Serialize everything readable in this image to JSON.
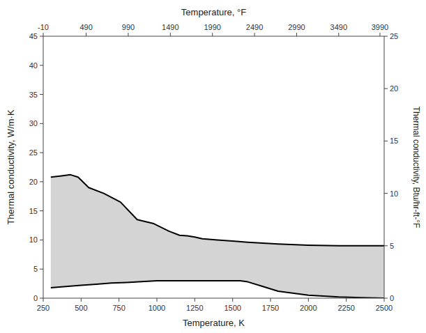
{
  "chart_data": {
    "type": "area",
    "color": "#b0b0b0",
    "grid": false,
    "xlabel": "Temperature, K",
    "ylabel": "Thermal conductivity, W/m·K",
    "y2label": "Thermal conductivity, Btu/hr-ft-°F",
    "x2label": "Temperature, °F",
    "xlim": [
      250,
      2500
    ],
    "xticks": [
      250,
      500,
      750,
      1000,
      1250,
      1500,
      1750,
      2000,
      2250,
      2500
    ],
    "x2lim": [
      250,
      2500
    ],
    "x2ticks": [
      {
        "value": 250.0,
        "label": "-10"
      },
      {
        "value": 533.3,
        "label": "490"
      },
      {
        "value": 811.1,
        "label": "990"
      },
      {
        "value": 1088.9,
        "label": "1490"
      },
      {
        "value": 1366.7,
        "label": "1990"
      },
      {
        "value": 1644.4,
        "label": "2490"
      },
      {
        "value": 1922.2,
        "label": "2990"
      },
      {
        "value": 2200.0,
        "label": "3490"
      },
      {
        "value": 2472.2,
        "label": "3990"
      }
    ],
    "ylim": [
      0,
      45
    ],
    "yticks": [
      0,
      5,
      10,
      15,
      20,
      25,
      30,
      35,
      40,
      45
    ],
    "y2lim": [
      0,
      25
    ],
    "y2ticks": [
      0,
      5,
      10,
      15,
      20,
      25
    ],
    "series": [
      {
        "type": "line",
        "color": "#000000",
        "x": [
          300,
          370,
          430,
          480,
          550,
          650,
          760,
          870,
          980,
          1080,
          1150,
          1200,
          1250,
          1300,
          1400,
          1500,
          1600,
          1800,
          2000,
          2200,
          2400,
          2500
        ],
        "values": [
          20.8,
          21.0,
          21.2,
          20.8,
          19.0,
          18.0,
          16.5,
          13.5,
          12.8,
          11.5,
          10.8,
          10.7,
          10.5,
          10.2,
          10.0,
          9.8,
          9.6,
          9.3,
          9.1,
          9.0,
          9.0,
          9.0
        ]
      },
      {
        "type": "line",
        "color": "#000000",
        "x": [
          300,
          400,
          500,
          600,
          700,
          800,
          900,
          1000,
          1100,
          1200,
          1300,
          1400,
          1500,
          1550,
          1600,
          1700,
          1800,
          2000,
          2200,
          2400,
          2500
        ],
        "values": [
          1.8,
          2.0,
          2.2,
          2.4,
          2.6,
          2.7,
          2.85,
          3.0,
          3.0,
          3.0,
          3.0,
          3.0,
          3.0,
          3.0,
          2.8,
          2.0,
          1.2,
          0.5,
          0.2,
          0.05,
          0.0
        ]
      }
    ]
  }
}
